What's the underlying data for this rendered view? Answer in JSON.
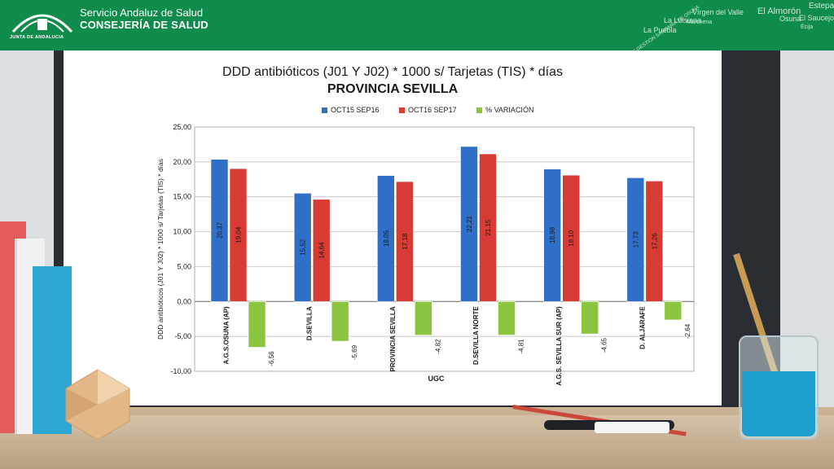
{
  "header": {
    "logo_text": "JUNTA DE ANDALUCIA",
    "org_line1": "Servicio Andaluz de Salud",
    "org_line2": "CONSEJERÍA DE SALUD",
    "area_words": [
      "ÁREA DE GESTIÓN SANITARIA DE OSUNA",
      "Estepa",
      "El Almorón",
      "Osuna",
      "Vírgen del Valle",
      "La Luisiana",
      "La Puebla",
      "El Saucejo",
      "Marchena",
      "Écija"
    ]
  },
  "colors": {
    "header_green": "#0f8c4b",
    "series_blue": "#2f6fc7",
    "series_red": "#d83a34",
    "series_green": "#8bc53f"
  },
  "chart_data": {
    "type": "bar",
    "title": "DDD antibióticos (J01 Y J02) * 1000 s/ Tarjetas (TIS) * días",
    "subtitle": "PROVINCIA SEVILLA",
    "xlabel": "UGC",
    "ylabel": "DDD antibióticos (J01 Y J02) * 1000 s/ Tarjetas (TIS) * días",
    "ylim": [
      -10,
      25
    ],
    "yticks": [
      "-10,00",
      "-5,00",
      "0,00",
      "5,00",
      "10,00",
      "15,00",
      "20,00",
      "25,00"
    ],
    "ytick_values": [
      -10,
      -5,
      0,
      5,
      10,
      15,
      20,
      25
    ],
    "grid": true,
    "legend_position": "top",
    "categories": [
      "A.G.S.OSUNA (AP)",
      "D.SEVILLA",
      "PROVINCIA SEVILLA",
      "D.SEVILLA NORTE",
      "A.G.S. SEVILLA SUR (AP)",
      "D. ALJARAFE"
    ],
    "series": [
      {
        "name": "OCT15 SEP16",
        "color": "#2f6fc7",
        "values": [
          20.37,
          15.52,
          18.05,
          22.21,
          18.98,
          17.73
        ],
        "labels": [
          "20,37",
          "15,52",
          "18,05",
          "22,21",
          "18,98",
          "17,73"
        ]
      },
      {
        "name": "OCT16 SEP17",
        "color": "#d83a34",
        "values": [
          19.04,
          14.64,
          17.18,
          21.15,
          18.1,
          17.26
        ],
        "labels": [
          "19,04",
          "14,64",
          "17,18",
          "21,15",
          "18,10",
          "17,26"
        ]
      },
      {
        "name": "% VARIACIÓN",
        "color": "#8bc53f",
        "values": [
          -6.56,
          -5.69,
          -4.82,
          -4.81,
          -4.65,
          -2.64
        ],
        "labels": [
          "-6,56",
          "-5,69",
          "-4,82",
          "-4,81",
          "-4,65",
          "-2,64"
        ]
      }
    ]
  }
}
